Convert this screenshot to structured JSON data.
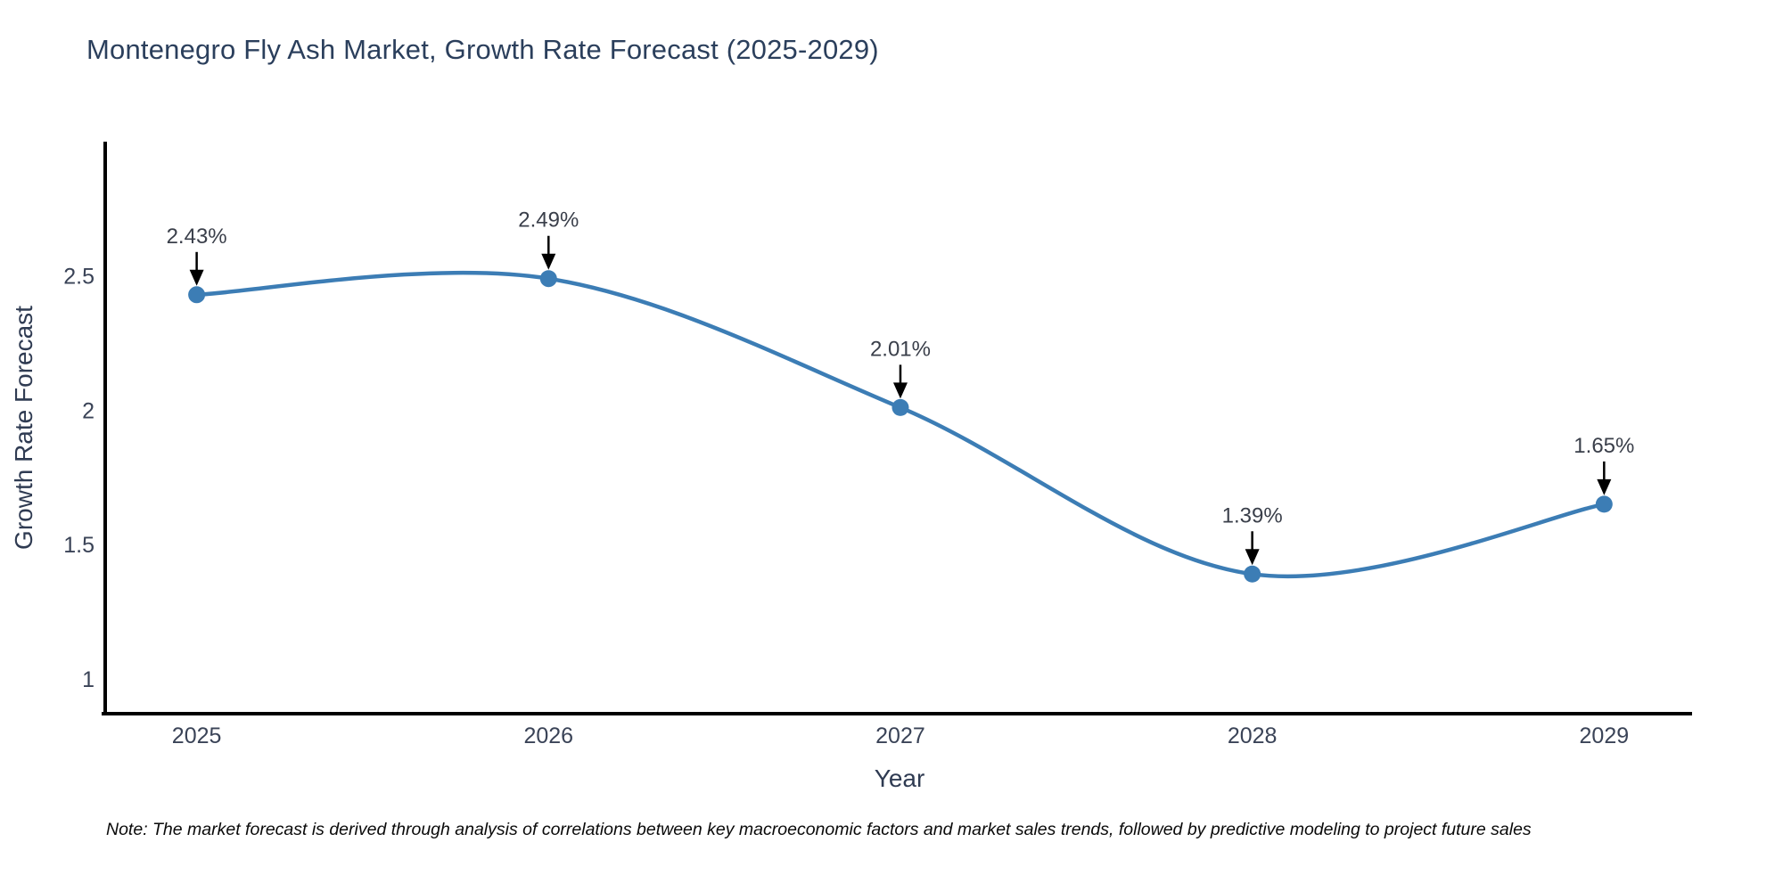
{
  "title": "Montenegro Fly Ash Market, Growth Rate Forecast (2025-2029)",
  "note": {
    "text": "Note: The market forecast is derived through analysis of correlations between key macroeconomic factors and market sales trends, followed by predictive modeling to project future sales"
  },
  "chart_data": {
    "type": "line",
    "line_shape": "spline",
    "title": "Montenegro Fly Ash Market, Growth Rate Forecast (2025-2029)",
    "xlabel": "Year",
    "ylabel": "Growth Rate Forecast",
    "x": [
      2025,
      2026,
      2027,
      2028,
      2029
    ],
    "values": [
      2.43,
      2.49,
      2.01,
      1.39,
      1.65
    ],
    "point_labels": [
      "2.43%",
      "2.49%",
      "2.01%",
      "1.39%",
      "1.65%"
    ],
    "xtick_labels": [
      "2025",
      "2026",
      "2027",
      "2028",
      "2029"
    ],
    "yticks": [
      1,
      1.5,
      2,
      2.5
    ],
    "ytick_labels": [
      "1",
      "1.5",
      "2",
      "2.5"
    ],
    "xlim": [
      2024.74,
      2029.25
    ],
    "ylim": [
      0.87,
      3.0
    ],
    "grid": false,
    "legend": "none",
    "colors": {
      "line": "#3c7db5",
      "marker": "#3c7db5",
      "axis": "#000000",
      "tick_text": "#3a4357",
      "annotation_text": "#3a3f4a",
      "annotation_arrow": "#000000"
    }
  }
}
